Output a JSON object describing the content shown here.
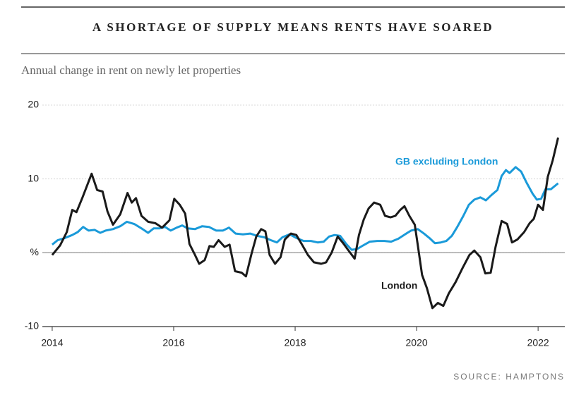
{
  "chart_data": {
    "type": "line",
    "title": "A SHORTAGE OF SUPPLY MEANS RENTS HAVE SOARED",
    "subtitle": "Annual change in rent on newly let properties",
    "source": "SOURCE: HAMPTONS",
    "xlim": [
      2013.78,
      2022.44
    ],
    "xticks": [
      2014,
      2016,
      2018,
      2020,
      2022
    ],
    "ylim": [
      -10,
      20
    ],
    "yticks": [
      -10,
      {
        "value": 0,
        "label": "%"
      },
      10,
      20
    ],
    "grid": true,
    "series": [
      {
        "name": "GB excluding London",
        "color": "#1a9ad9",
        "x": [
          2014.0,
          2014.09,
          2014.21,
          2014.33,
          2014.42,
          2014.51,
          2014.6,
          2014.7,
          2014.79,
          2014.88,
          2015.0,
          2015.12,
          2015.23,
          2015.35,
          2015.47,
          2015.58,
          2015.67,
          2015.77,
          2015.86,
          2015.95,
          2016.05,
          2016.14,
          2016.23,
          2016.35,
          2016.47,
          2016.58,
          2016.7,
          2016.81,
          2016.91,
          2017.02,
          2017.14,
          2017.26,
          2017.37,
          2017.49,
          2017.6,
          2017.7,
          2017.79,
          2017.91,
          2018.02,
          2018.14,
          2018.26,
          2018.37,
          2018.47,
          2018.56,
          2018.65,
          2018.74,
          2018.84,
          2018.93,
          2019.02,
          2019.12,
          2019.23,
          2019.35,
          2019.47,
          2019.58,
          2019.7,
          2019.81,
          2019.91,
          2020.02,
          2020.12,
          2020.21,
          2020.3,
          2020.4,
          2020.49,
          2020.58,
          2020.67,
          2020.77,
          2020.86,
          2020.95,
          2021.05,
          2021.14,
          2021.23,
          2021.33,
          2021.4,
          2021.47,
          2021.53,
          2021.63,
          2021.72,
          2021.81,
          2021.91,
          2021.98,
          2022.05,
          2022.12,
          2022.21,
          2022.33
        ],
        "values": [
          1.1,
          1.7,
          2,
          2.4,
          2.8,
          3.5,
          3,
          3.1,
          2.7,
          3,
          3.2,
          3.6,
          4.2,
          3.9,
          3.3,
          2.7,
          3.3,
          3.3,
          3.5,
          3,
          3.4,
          3.7,
          3.3,
          3.2,
          3.6,
          3.5,
          3,
          3,
          3.4,
          2.6,
          2.5,
          2.6,
          2.3,
          2.1,
          1.7,
          1.4,
          2.1,
          2.5,
          2,
          1.6,
          1.6,
          1.4,
          1.5,
          2.2,
          2.4,
          2.3,
          1.2,
          0.4,
          0.5,
          1,
          1.5,
          1.6,
          1.6,
          1.5,
          1.9,
          2.5,
          3,
          3.2,
          2.6,
          2,
          1.3,
          1.4,
          1.6,
          2.3,
          3.5,
          5,
          6.5,
          7.2,
          7.5,
          7.1,
          7.8,
          8.5,
          10.4,
          11.2,
          10.8,
          11.6,
          11,
          9.5,
          8,
          7.2,
          7.3,
          8.6,
          8.6,
          9.4
        ]
      },
      {
        "name": "London",
        "color": "#1a1a1a",
        "x": [
          2014.0,
          2014.13,
          2014.24,
          2014.33,
          2014.4,
          2014.5,
          2014.65,
          2014.74,
          2014.83,
          2014.91,
          2015.0,
          2015.12,
          2015.24,
          2015.31,
          2015.38,
          2015.47,
          2015.58,
          2015.7,
          2015.81,
          2015.93,
          2016.01,
          2016.1,
          2016.19,
          2016.26,
          2016.34,
          2016.42,
          2016.51,
          2016.59,
          2016.66,
          2016.74,
          2016.84,
          2016.92,
          2017.01,
          2017.12,
          2017.19,
          2017.28,
          2017.36,
          2017.44,
          2017.51,
          2017.58,
          2017.67,
          2017.76,
          2017.83,
          2017.93,
          2018.02,
          2018.12,
          2018.21,
          2018.31,
          2018.43,
          2018.51,
          2018.6,
          2018.7,
          2018.79,
          2018.88,
          2018.98,
          2019.05,
          2019.13,
          2019.21,
          2019.3,
          2019.4,
          2019.48,
          2019.57,
          2019.65,
          2019.73,
          2019.8,
          2019.88,
          2019.97,
          2020.02,
          2020.09,
          2020.17,
          2020.26,
          2020.35,
          2020.44,
          2020.53,
          2020.64,
          2020.76,
          2020.87,
          2020.95,
          2021.05,
          2021.13,
          2021.22,
          2021.3,
          2021.4,
          2021.49,
          2021.57,
          2021.66,
          2021.77,
          2021.86,
          2021.93,
          2022.0,
          2022.08,
          2022.16,
          2022.24,
          2022.33
        ],
        "values": [
          -0.3,
          1,
          2.8,
          5.8,
          5.5,
          7.5,
          10.7,
          8.5,
          8.3,
          5.6,
          3.8,
          5.2,
          8.1,
          6.8,
          7.4,
          5,
          4.2,
          4,
          3.4,
          4.4,
          7.3,
          6.5,
          5.3,
          1.2,
          -0.1,
          -1.5,
          -1,
          0.9,
          0.8,
          1.7,
          0.8,
          1.1,
          -2.5,
          -2.7,
          -3.2,
          -0.2,
          2.2,
          3.2,
          2.9,
          -0.3,
          -1.5,
          -0.6,
          1.8,
          2.6,
          2.4,
          1,
          -0.3,
          -1.3,
          -1.5,
          -1.3,
          0,
          2.2,
          1.3,
          0.3,
          -0.8,
          2.4,
          4.5,
          6,
          6.8,
          6.5,
          5,
          4.8,
          5,
          5.8,
          6.3,
          5,
          3.8,
          1,
          -3,
          -4.8,
          -7.5,
          -6.8,
          -7.2,
          -5.5,
          -4,
          -2,
          -0.3,
          0.3,
          -0.6,
          -2.8,
          -2.7,
          0.8,
          4.3,
          3.9,
          1.4,
          1.8,
          2.8,
          4,
          4.6,
          6.5,
          5.8,
          10.3,
          12.5,
          15.6
        ]
      }
    ]
  }
}
